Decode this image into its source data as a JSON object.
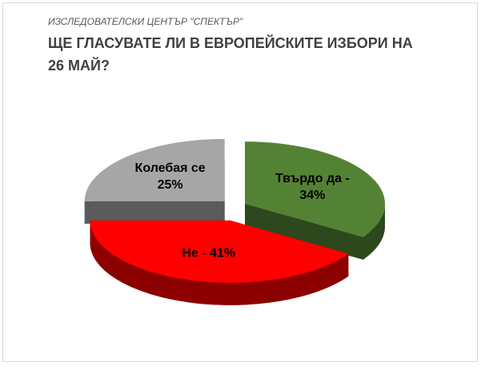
{
  "chart_data": {
    "type": "pie3d",
    "subtitle": "ИЗСЛЕДОВАТЕЛСКИ ЦЕНТЪР \"СПЕКТЪР\"",
    "title": "ЩЕ ГЛАСУВАТЕ ЛИ В ЕВРОПЕЙСКИТЕ ИЗБОРИ НА 26 МАЙ?",
    "values": [
      34,
      41,
      25
    ],
    "value_labels": [
      "Твърдо да - 34%",
      "Не - 41%",
      "Колебая се 25%"
    ],
    "colors": [
      "#548235",
      "#ff0000",
      "#a6a6a6"
    ]
  }
}
